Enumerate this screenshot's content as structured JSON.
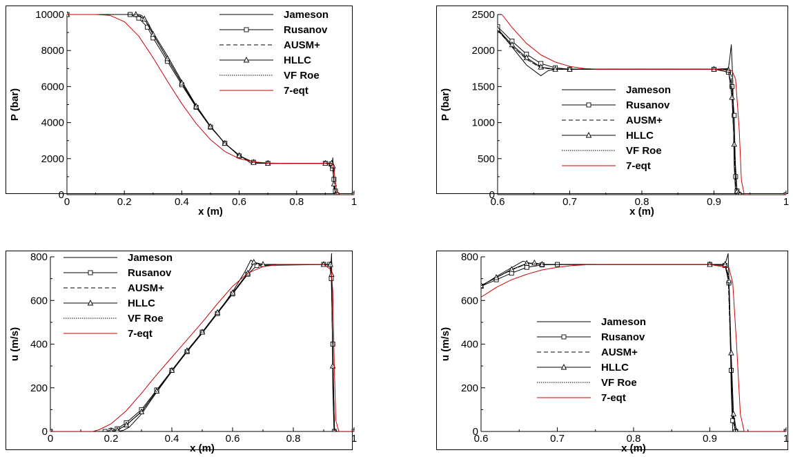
{
  "chart_data": [
    {
      "type": "line",
      "xlabel": "x (m)",
      "ylabel": "P (bar)",
      "xlim": [
        0,
        1
      ],
      "ylim": [
        0,
        10000
      ],
      "xticks": [
        "0",
        "0.2",
        "0.4",
        "0.6",
        "0.8",
        "1"
      ],
      "yticks": [
        "0",
        "2000",
        "4000",
        "6000",
        "8000",
        "10000"
      ],
      "grid": false,
      "legend_position": "top-right",
      "series": [
        {
          "name": "Jameson",
          "x": [
            0,
            0.25,
            0.26,
            0.28,
            0.3,
            0.35,
            0.4,
            0.45,
            0.5,
            0.55,
            0.6,
            0.64,
            0.66,
            0.7,
            0.9,
            0.924,
            0.926,
            0.93,
            0.934,
            1
          ],
          "y": [
            10000,
            10000,
            9950,
            9600,
            9000,
            7700,
            6300,
            4950,
            3800,
            2850,
            2200,
            1760,
            1740,
            1740,
            1740,
            1740,
            2050,
            300,
            0,
            0
          ]
        },
        {
          "name": "Rusanov",
          "x": [
            0,
            0.22,
            0.25,
            0.28,
            0.3,
            0.35,
            0.4,
            0.45,
            0.5,
            0.55,
            0.6,
            0.65,
            0.7,
            0.9,
            0.92,
            0.925,
            0.93,
            0.935,
            0.94,
            1
          ],
          "y": [
            10000,
            10000,
            9800,
            9300,
            8700,
            7400,
            6100,
            4850,
            3750,
            2850,
            2150,
            1800,
            1740,
            1740,
            1700,
            1450,
            850,
            200,
            0,
            0
          ]
        },
        {
          "name": "AUSM+",
          "x": [
            0,
            0.24,
            0.27,
            0.3,
            0.35,
            0.4,
            0.45,
            0.5,
            0.55,
            0.6,
            0.65,
            0.7,
            0.9,
            0.922,
            0.926,
            0.93,
            0.936,
            1
          ],
          "y": [
            10000,
            10000,
            9750,
            8900,
            7550,
            6200,
            4900,
            3780,
            2850,
            2170,
            1790,
            1740,
            1740,
            1740,
            1650,
            700,
            0,
            0
          ]
        },
        {
          "name": "HLLC",
          "x": [
            0,
            0.24,
            0.27,
            0.3,
            0.35,
            0.4,
            0.45,
            0.5,
            0.55,
            0.6,
            0.65,
            0.7,
            0.9,
            0.922,
            0.926,
            0.93,
            0.936,
            1
          ],
          "y": [
            10000,
            10000,
            9750,
            8900,
            7550,
            6200,
            4900,
            3780,
            2850,
            2170,
            1790,
            1740,
            1740,
            1740,
            1600,
            600,
            0,
            0
          ]
        },
        {
          "name": "VF Roe",
          "x": [
            0,
            0.24,
            0.27,
            0.3,
            0.35,
            0.4,
            0.45,
            0.5,
            0.55,
            0.6,
            0.65,
            0.7,
            0.9,
            0.922,
            0.926,
            0.93,
            0.936,
            1
          ],
          "y": [
            10000,
            10000,
            9750,
            8900,
            7550,
            6200,
            4900,
            3780,
            2850,
            2170,
            1790,
            1740,
            1740,
            1740,
            1650,
            700,
            0,
            0
          ]
        },
        {
          "name": "7-eqt",
          "x": [
            0,
            0.1,
            0.15,
            0.2,
            0.25,
            0.3,
            0.35,
            0.4,
            0.45,
            0.5,
            0.55,
            0.6,
            0.65,
            0.7,
            0.75,
            0.9,
            0.925,
            0.93,
            0.935,
            0.94,
            0.95,
            1
          ],
          "y": [
            10000,
            10000,
            9950,
            9600,
            8800,
            7600,
            6300,
            5050,
            3950,
            3050,
            2400,
            2000,
            1820,
            1760,
            1740,
            1740,
            1700,
            1400,
            700,
            150,
            0,
            0
          ]
        }
      ]
    },
    {
      "type": "line",
      "xlabel": "x (m)",
      "ylabel": "P (bar)",
      "xlim": [
        0.6,
        1
      ],
      "ylim": [
        0,
        2500
      ],
      "xticks": [
        "0.6",
        "0.7",
        "0.8",
        "0.9",
        "1"
      ],
      "yticks": [
        "0",
        "500",
        "1000",
        "1500",
        "2000",
        "2500"
      ],
      "grid": false,
      "legend_position": "center-right",
      "series": [
        {
          "name": "Jameson",
          "x": [
            0.6,
            0.62,
            0.64,
            0.66,
            0.67,
            0.68,
            0.9,
            0.92,
            0.922,
            0.924,
            0.926,
            0.928,
            0.93,
            1
          ],
          "y": [
            2300,
            2050,
            1800,
            1650,
            1720,
            1740,
            1740,
            1750,
            1900,
            2080,
            1600,
            400,
            0,
            0
          ]
        },
        {
          "name": "Rusanov",
          "x": [
            0.6,
            0.62,
            0.64,
            0.66,
            0.68,
            0.7,
            0.9,
            0.92,
            0.925,
            0.928,
            0.93,
            0.932,
            0.935,
            1
          ],
          "y": [
            2330,
            2130,
            1950,
            1820,
            1760,
            1740,
            1740,
            1700,
            1500,
            1100,
            250,
            50,
            0,
            0
          ]
        },
        {
          "name": "AUSM+",
          "x": [
            0.6,
            0.62,
            0.64,
            0.66,
            0.68,
            0.7,
            0.9,
            0.92,
            0.924,
            0.927,
            0.93,
            0.934,
            1
          ],
          "y": [
            2280,
            2060,
            1880,
            1760,
            1740,
            1740,
            1740,
            1740,
            1650,
            900,
            100,
            0,
            0
          ]
        },
        {
          "name": "HLLC",
          "x": [
            0.6,
            0.62,
            0.64,
            0.66,
            0.68,
            0.7,
            0.9,
            0.92,
            0.925,
            0.928,
            0.932,
            0.936,
            1
          ],
          "y": [
            2300,
            2080,
            1900,
            1770,
            1740,
            1740,
            1740,
            1730,
            1350,
            700,
            50,
            0,
            0
          ]
        },
        {
          "name": "VF Roe",
          "x": [
            0.6,
            0.62,
            0.64,
            0.66,
            0.68,
            0.7,
            0.9,
            0.92,
            0.924,
            0.927,
            0.93,
            0.934,
            1
          ],
          "y": [
            2280,
            2060,
            1880,
            1760,
            1740,
            1740,
            1740,
            1740,
            1650,
            900,
            100,
            0,
            0
          ]
        },
        {
          "name": "7-eqt",
          "x": [
            0.606,
            0.62,
            0.64,
            0.66,
            0.68,
            0.7,
            0.72,
            0.74,
            0.8,
            0.9,
            0.925,
            0.93,
            0.935,
            0.938,
            0.942,
            1
          ],
          "y": [
            2500,
            2320,
            2100,
            1940,
            1840,
            1780,
            1750,
            1740,
            1740,
            1740,
            1720,
            1600,
            900,
            200,
            0,
            0
          ]
        }
      ]
    },
    {
      "type": "line",
      "xlabel": "x (m)",
      "ylabel": "u (m/s)",
      "xlim": [
        0,
        1
      ],
      "ylim": [
        0,
        800
      ],
      "xticks": [
        "0",
        "0.2",
        "0.4",
        "0.6",
        "0.8",
        "1"
      ],
      "yticks": [
        "0",
        "200",
        "400",
        "600",
        "800"
      ],
      "grid": false,
      "legend_position": "top-left",
      "series": [
        {
          "name": "Jameson",
          "x": [
            0,
            0.22,
            0.24,
            0.26,
            0.3,
            0.35,
            0.4,
            0.45,
            0.5,
            0.55,
            0.6,
            0.64,
            0.66,
            0.68,
            0.9,
            0.924,
            0.926,
            0.928,
            0.93,
            0.934,
            1
          ],
          "y": [
            0,
            0,
            5,
            20,
            80,
            180,
            275,
            365,
            450,
            540,
            640,
            730,
            785,
            765,
            765,
            765,
            815,
            560,
            200,
            0,
            0
          ]
        },
        {
          "name": "Rusanov",
          "x": [
            0,
            0.18,
            0.2,
            0.22,
            0.25,
            0.3,
            0.35,
            0.4,
            0.45,
            0.5,
            0.55,
            0.6,
            0.65,
            0.68,
            0.9,
            0.92,
            0.925,
            0.93,
            0.935,
            1
          ],
          "y": [
            0,
            0,
            5,
            12,
            40,
            100,
            190,
            280,
            365,
            455,
            540,
            630,
            720,
            760,
            765,
            765,
            700,
            400,
            0,
            0
          ]
        },
        {
          "name": "AUSM+",
          "x": [
            0,
            0.2,
            0.22,
            0.25,
            0.3,
            0.35,
            0.4,
            0.45,
            0.5,
            0.55,
            0.6,
            0.65,
            0.67,
            0.7,
            0.9,
            0.922,
            0.926,
            0.93,
            0.936,
            1
          ],
          "y": [
            0,
            0,
            5,
            30,
            90,
            185,
            280,
            370,
            455,
            545,
            635,
            725,
            770,
            765,
            765,
            765,
            700,
            300,
            0,
            0
          ]
        },
        {
          "name": "HLLC",
          "x": [
            0,
            0.2,
            0.22,
            0.25,
            0.3,
            0.35,
            0.4,
            0.45,
            0.5,
            0.55,
            0.6,
            0.65,
            0.67,
            0.7,
            0.9,
            0.922,
            0.926,
            0.93,
            0.936,
            1
          ],
          "y": [
            0,
            0,
            5,
            30,
            90,
            185,
            280,
            370,
            455,
            545,
            635,
            725,
            775,
            765,
            765,
            765,
            720,
            300,
            0,
            0
          ]
        },
        {
          "name": "VF Roe",
          "x": [
            0,
            0.2,
            0.22,
            0.25,
            0.3,
            0.35,
            0.4,
            0.45,
            0.5,
            0.55,
            0.6,
            0.65,
            0.67,
            0.7,
            0.9,
            0.922,
            0.926,
            0.93,
            0.936,
            1
          ],
          "y": [
            0,
            0,
            5,
            30,
            90,
            185,
            280,
            370,
            455,
            545,
            635,
            725,
            770,
            765,
            765,
            765,
            700,
            300,
            0,
            0
          ]
        },
        {
          "name": "7-eqt",
          "x": [
            0,
            0.14,
            0.16,
            0.2,
            0.25,
            0.3,
            0.35,
            0.4,
            0.45,
            0.5,
            0.55,
            0.6,
            0.65,
            0.7,
            0.75,
            0.8,
            0.9,
            0.925,
            0.93,
            0.935,
            0.94,
            0.95,
            1
          ],
          "y": [
            0,
            0,
            8,
            35,
            95,
            175,
            260,
            340,
            420,
            500,
            585,
            665,
            725,
            755,
            765,
            765,
            765,
            740,
            640,
            300,
            50,
            0,
            0
          ]
        }
      ]
    },
    {
      "type": "line",
      "xlabel": "x (m)",
      "ylabel": "u (m/s)",
      "xlim": [
        0.6,
        1
      ],
      "ylim": [
        0,
        800
      ],
      "xticks": [
        "0.6",
        "0.7",
        "0.8",
        "0.9",
        "1"
      ],
      "yticks": [
        "0",
        "200",
        "400",
        "600",
        "800"
      ],
      "grid": false,
      "legend_position": "center",
      "series": [
        {
          "name": "Jameson",
          "x": [
            0.6,
            0.62,
            0.64,
            0.655,
            0.665,
            0.68,
            0.9,
            0.92,
            0.922,
            0.924,
            0.926,
            0.928,
            0.93,
            1
          ],
          "y": [
            665,
            710,
            750,
            780,
            770,
            765,
            765,
            765,
            790,
            815,
            600,
            200,
            0,
            0
          ]
        },
        {
          "name": "Rusanov",
          "x": [
            0.6,
            0.62,
            0.64,
            0.66,
            0.68,
            0.7,
            0.9,
            0.92,
            0.925,
            0.928,
            0.93,
            0.934,
            1
          ],
          "y": [
            665,
            695,
            725,
            752,
            763,
            765,
            765,
            760,
            680,
            280,
            50,
            0,
            0
          ]
        },
        {
          "name": "AUSM+",
          "x": [
            0.6,
            0.62,
            0.64,
            0.66,
            0.67,
            0.68,
            0.9,
            0.92,
            0.924,
            0.927,
            0.93,
            0.934,
            1
          ],
          "y": [
            668,
            705,
            740,
            768,
            770,
            765,
            765,
            765,
            720,
            400,
            80,
            0,
            0
          ]
        },
        {
          "name": "HLLC",
          "x": [
            0.6,
            0.62,
            0.64,
            0.66,
            0.67,
            0.68,
            0.9,
            0.92,
            0.925,
            0.928,
            0.931,
            0.935,
            1
          ],
          "y": [
            668,
            705,
            742,
            770,
            772,
            765,
            765,
            765,
            690,
            360,
            80,
            0,
            0
          ]
        },
        {
          "name": "VF Roe",
          "x": [
            0.6,
            0.62,
            0.64,
            0.66,
            0.67,
            0.68,
            0.9,
            0.92,
            0.924,
            0.927,
            0.93,
            0.934,
            1
          ],
          "y": [
            668,
            705,
            740,
            768,
            770,
            765,
            765,
            765,
            720,
            400,
            80,
            0,
            0
          ]
        },
        {
          "name": "7-eqt",
          "x": [
            0.6,
            0.62,
            0.64,
            0.66,
            0.68,
            0.7,
            0.72,
            0.74,
            0.76,
            0.8,
            0.9,
            0.925,
            0.93,
            0.935,
            0.94,
            0.945,
            1
          ],
          "y": [
            615,
            660,
            695,
            720,
            740,
            752,
            760,
            764,
            765,
            765,
            765,
            750,
            680,
            400,
            80,
            0,
            0
          ]
        }
      ]
    }
  ],
  "series_styles": {
    "Jameson": {
      "color": "#000000",
      "dash": "",
      "marker": "none"
    },
    "Rusanov": {
      "color": "#000000",
      "dash": "",
      "marker": "square"
    },
    "AUSM+": {
      "color": "#000000",
      "dash": "6,4",
      "marker": "none"
    },
    "HLLC": {
      "color": "#000000",
      "dash": "",
      "marker": "triangle"
    },
    "VF Roe": {
      "color": "#000000",
      "dash": "1.5,1.5",
      "marker": "none"
    },
    "7-eqt": {
      "color": "#cc0000",
      "dash": "",
      "marker": "none"
    }
  }
}
